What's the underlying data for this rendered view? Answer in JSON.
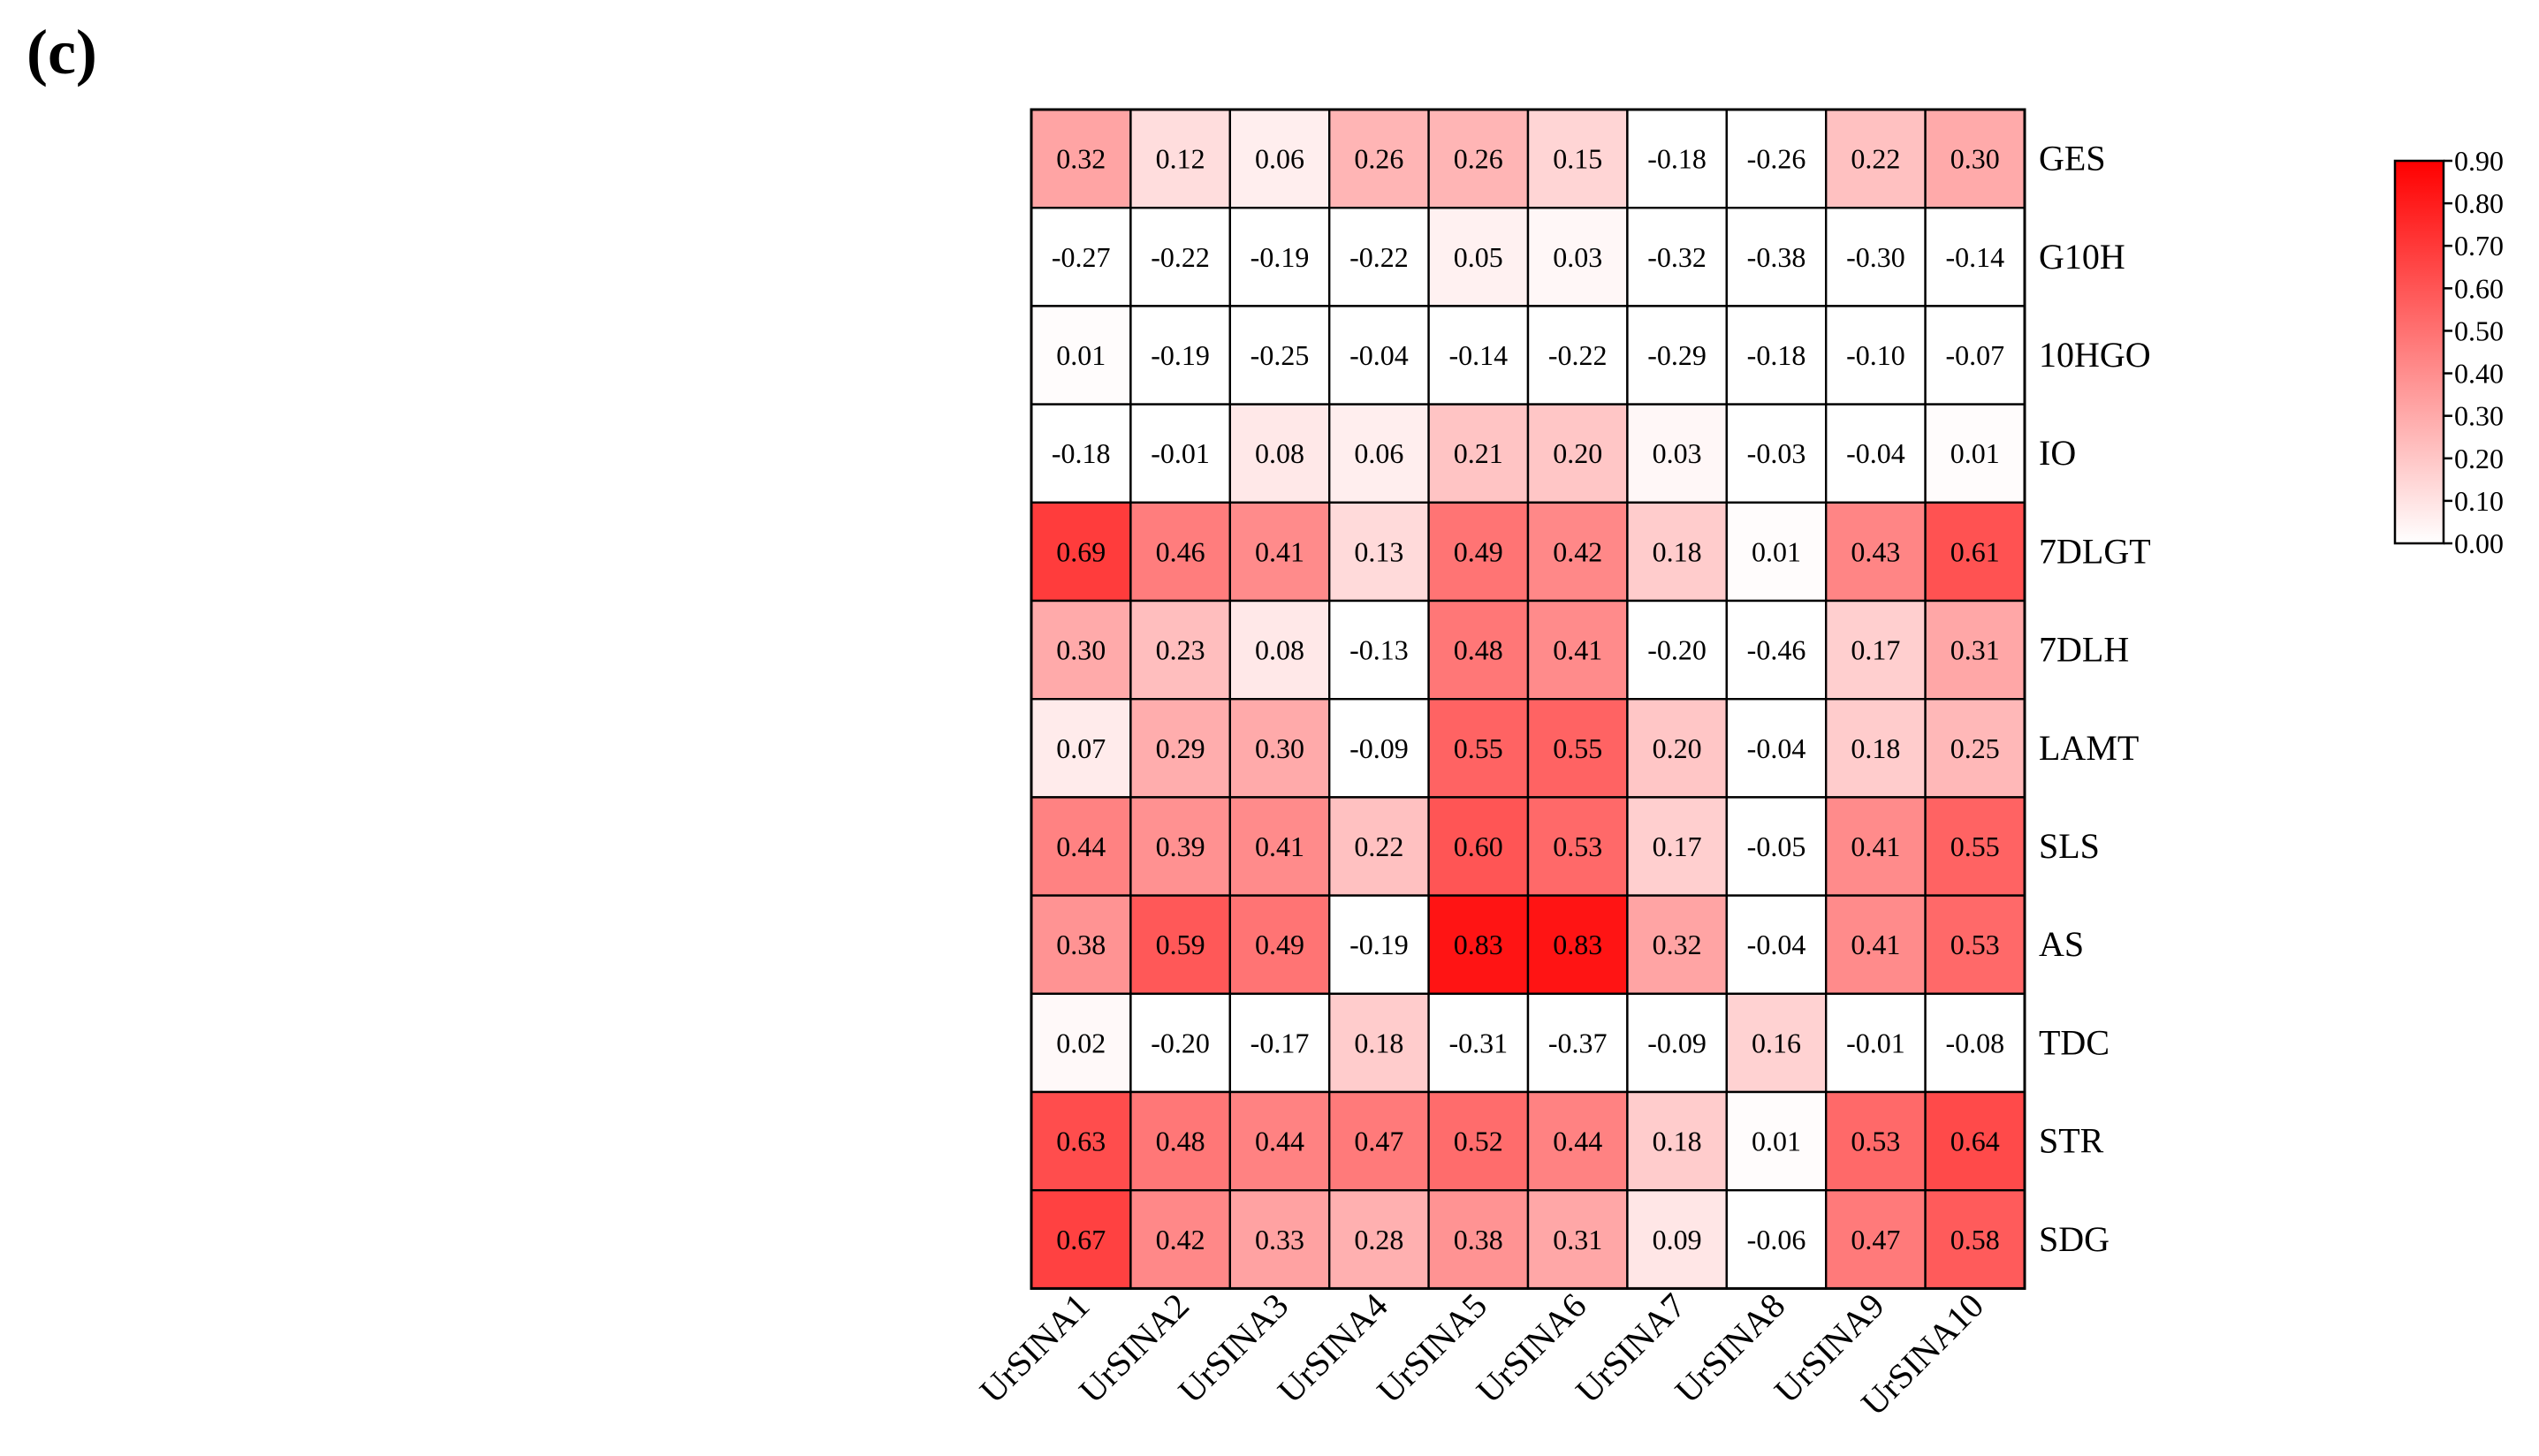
{
  "panel_label": "(c)",
  "chart_data": {
    "type": "heatmap",
    "title": "",
    "xlabel": "",
    "ylabel": "",
    "columns": [
      "UrSINA1",
      "UrSINA2",
      "UrSINA3",
      "UrSINA4",
      "UrSINA5",
      "UrSINA6",
      "UrSINA7",
      "UrSINA8",
      "UrSINA9",
      "UrSINA10"
    ],
    "rows": [
      "GES",
      "G10H",
      "10HGO",
      "IO",
      "7DLGT",
      "7DLH",
      "LAMT",
      "SLS",
      "AS",
      "TDC",
      "STR",
      "SDG"
    ],
    "values": [
      [
        0.32,
        0.12,
        0.06,
        0.26,
        0.26,
        0.15,
        -0.18,
        -0.26,
        0.22,
        0.3
      ],
      [
        -0.27,
        -0.22,
        -0.19,
        -0.22,
        0.05,
        0.03,
        -0.32,
        -0.38,
        -0.3,
        -0.14
      ],
      [
        0.01,
        -0.19,
        -0.25,
        -0.04,
        -0.14,
        -0.22,
        -0.29,
        -0.18,
        -0.1,
        -0.07
      ],
      [
        -0.18,
        -0.01,
        0.08,
        0.06,
        0.21,
        0.2,
        0.03,
        -0.03,
        -0.04,
        0.01
      ],
      [
        0.69,
        0.46,
        0.41,
        0.13,
        0.49,
        0.42,
        0.18,
        0.01,
        0.43,
        0.61
      ],
      [
        0.3,
        0.23,
        0.08,
        -0.13,
        0.48,
        0.41,
        -0.2,
        -0.46,
        0.17,
        0.31
      ],
      [
        0.07,
        0.29,
        0.3,
        -0.09,
        0.55,
        0.55,
        0.2,
        -0.04,
        0.18,
        0.25
      ],
      [
        0.44,
        0.39,
        0.41,
        0.22,
        0.6,
        0.53,
        0.17,
        -0.05,
        0.41,
        0.55
      ],
      [
        0.38,
        0.59,
        0.49,
        -0.19,
        0.83,
        0.83,
        0.32,
        -0.04,
        0.41,
        0.53
      ],
      [
        0.02,
        -0.2,
        -0.17,
        0.18,
        -0.31,
        -0.37,
        -0.09,
        0.16,
        -0.01,
        -0.08
      ],
      [
        0.63,
        0.48,
        0.44,
        0.47,
        0.52,
        0.44,
        0.18,
        0.01,
        0.53,
        0.64
      ],
      [
        0.67,
        0.42,
        0.33,
        0.28,
        0.38,
        0.31,
        0.09,
        -0.06,
        0.47,
        0.58
      ]
    ],
    "cell_labels": [
      [
        "0.32",
        "0.12",
        "0.06",
        "0.26",
        "0.26",
        "0.15",
        "-0.18",
        "-0.26",
        "0.22",
        "0.30"
      ],
      [
        "-0.27",
        "-0.22",
        "-0.19",
        "-0.22",
        "0.05",
        "0.03",
        "-0.32",
        "-0.38",
        "-0.30",
        "-0.14"
      ],
      [
        "0.01",
        "-0.19",
        "-0.25",
        "-0.04",
        "-0.14",
        "-0.22",
        "-0.29",
        "-0.18",
        "-0.10",
        "-0.07"
      ],
      [
        "-0.18",
        "-0.01",
        "0.08",
        "0.06",
        "0.21",
        "0.20",
        "0.03",
        "-0.03",
        "-0.04",
        "0.01"
      ],
      [
        "0.69",
        "0.46",
        "0.41",
        "0.13",
        "0.49",
        "0.42",
        "0.18",
        "0.01",
        "0.43",
        "0.61"
      ],
      [
        "0.30",
        "0.23",
        "0.08",
        "-0.13",
        "0.48",
        "0.41",
        "-0.20",
        "-0.46",
        "0.17",
        "0.31"
      ],
      [
        "0.07",
        "0.29",
        "0.30",
        "-0.09",
        "0.55",
        "0.55",
        "0.20",
        "-0.04",
        "0.18",
        "0.25"
      ],
      [
        "0.44",
        "0.39",
        "0.41",
        "0.22",
        "0.60",
        "0.53",
        "0.17",
        "-0.05",
        "0.41",
        "0.55"
      ],
      [
        "0.38",
        "0.59",
        "0.49",
        "-0.19",
        "0.83",
        "0.83",
        "0.32",
        "-0.04",
        "0.41",
        "0.53"
      ],
      [
        "0.02",
        "-0.20",
        "-0.17",
        "0.18",
        "-0.31",
        "-0.37",
        "-0.09",
        "0.16",
        "-0.01",
        "-0.08"
      ],
      [
        "0.63",
        "0.48",
        "0.44",
        "0.47",
        "0.52",
        "0.44",
        "0.18",
        "0.01",
        "0.53",
        "0.64"
      ],
      [
        "0.67",
        "0.42",
        "0.33",
        "0.28",
        "0.38",
        "0.31",
        "0.09",
        "-0.06",
        "0.47",
        "0.58"
      ]
    ],
    "color_scale": {
      "min": 0.0,
      "max": 0.9,
      "low_color": "#ffffff",
      "high_color": "#ff0000",
      "ticks": [
        0.0,
        0.1,
        0.2,
        0.3,
        0.4,
        0.5,
        0.6,
        0.7,
        0.8,
        0.9
      ],
      "tick_labels": [
        "0.00",
        "0.10",
        "0.20",
        "0.30",
        "0.40",
        "0.50",
        "0.60",
        "0.70",
        "0.80",
        "0.90"
      ]
    },
    "grid": true,
    "legend_position": "right"
  }
}
